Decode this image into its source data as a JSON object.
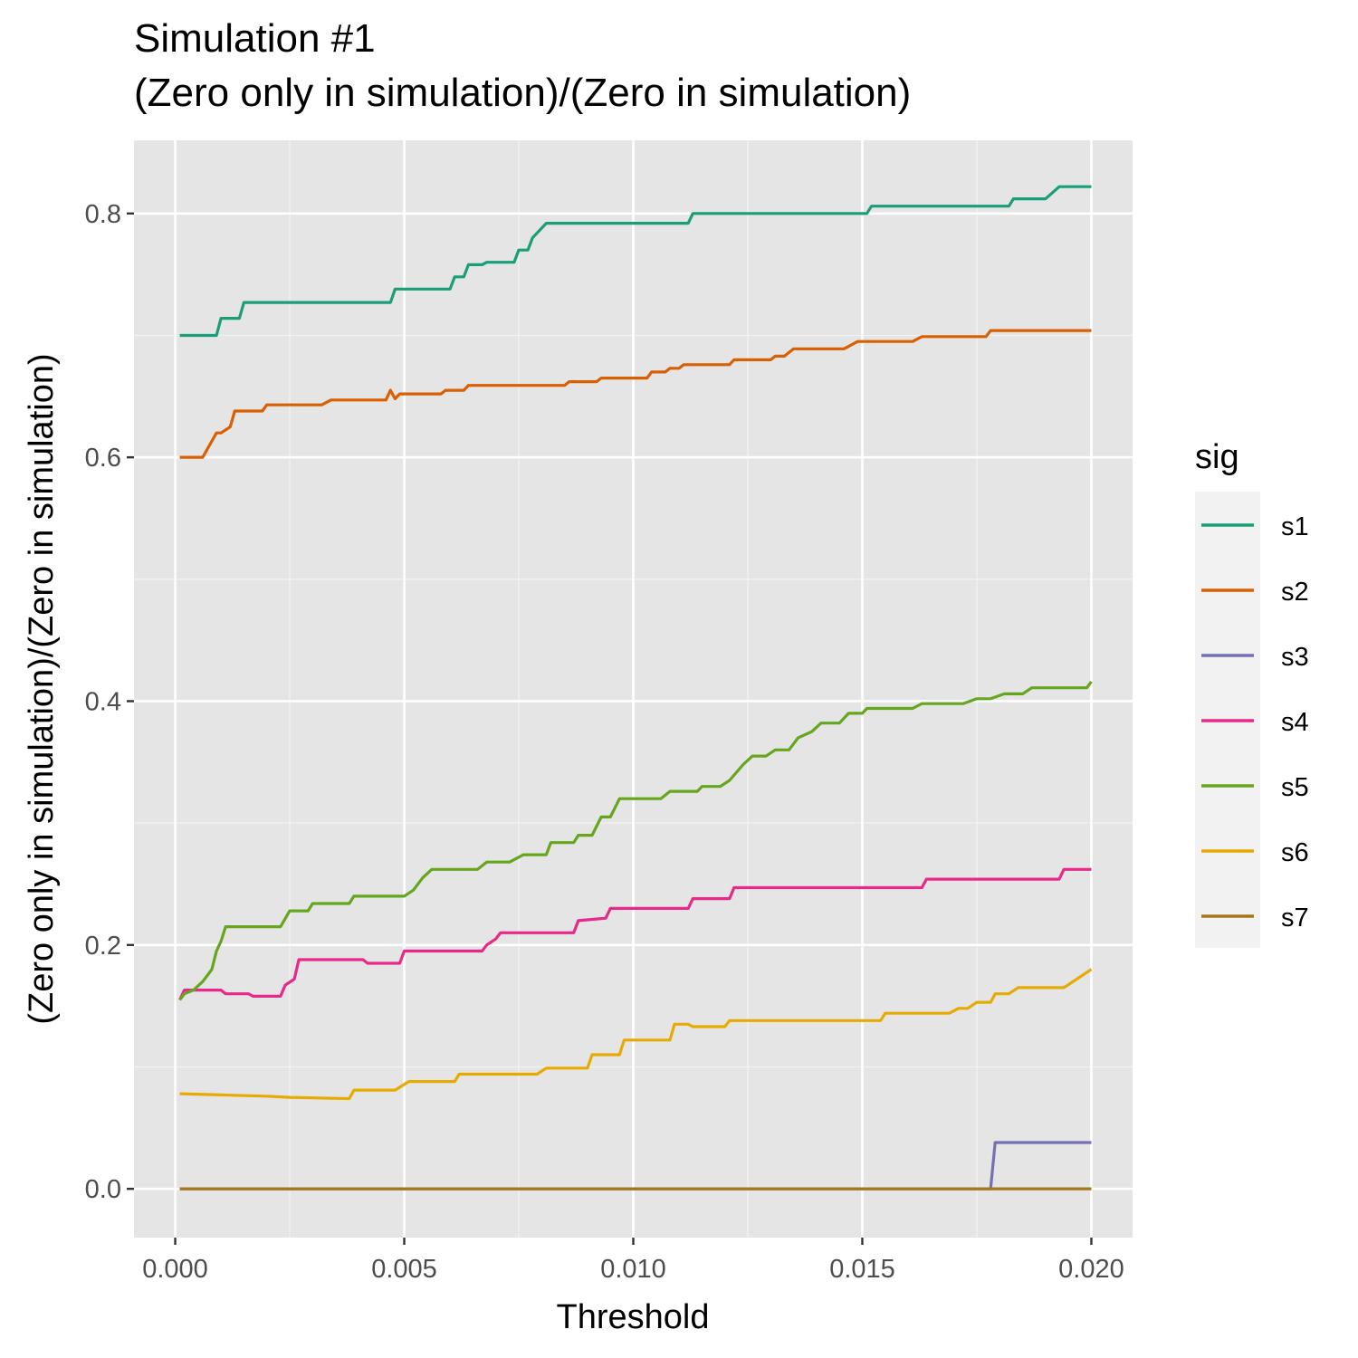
{
  "chart_data": {
    "type": "line",
    "title": "Simulation #1",
    "subtitle": "(Zero only in simulation)/(Zero in simulation)",
    "xlabel": "Threshold",
    "ylabel": "(Zero only in simulation)/(Zero in simulation)",
    "xlim": [
      -0.0009,
      0.0209
    ],
    "ylim": [
      -0.04,
      0.86
    ],
    "x_ticks": [
      0.0,
      0.005,
      0.01,
      0.015,
      0.02
    ],
    "x_tick_labels": [
      "0.000",
      "0.005",
      "0.010",
      "0.015",
      "0.020"
    ],
    "y_ticks": [
      0.0,
      0.2,
      0.4,
      0.6,
      0.8
    ],
    "y_tick_labels": [
      "0.0",
      "0.2",
      "0.4",
      "0.6",
      "0.8"
    ],
    "grid": true,
    "legend": {
      "title": "sig",
      "position": "right"
    },
    "series": [
      {
        "name": "s1",
        "color": "#1b9e77",
        "x": [
          0.0001,
          0.0009,
          0.001,
          0.0014,
          0.0015,
          0.0047,
          0.0048,
          0.006,
          0.0061,
          0.0063,
          0.0064,
          0.0067,
          0.0068,
          0.0074,
          0.0075,
          0.0077,
          0.0078,
          0.0081,
          0.0112,
          0.0113,
          0.0151,
          0.0152,
          0.0182,
          0.0183,
          0.019,
          0.0193,
          0.02
        ],
        "y": [
          0.7,
          0.7,
          0.714,
          0.714,
          0.727,
          0.727,
          0.738,
          0.738,
          0.748,
          0.748,
          0.758,
          0.758,
          0.76,
          0.76,
          0.77,
          0.77,
          0.78,
          0.792,
          0.792,
          0.8,
          0.8,
          0.806,
          0.806,
          0.812,
          0.812,
          0.822,
          0.822
        ]
      },
      {
        "name": "s2",
        "color": "#d95f02",
        "x": [
          0.0001,
          0.0006,
          0.0009,
          0.001,
          0.0012,
          0.0013,
          0.0019,
          0.002,
          0.0032,
          0.0034,
          0.0046,
          0.0047,
          0.0048,
          0.0049,
          0.0058,
          0.0059,
          0.0063,
          0.0064,
          0.0085,
          0.0086,
          0.0092,
          0.0093,
          0.0103,
          0.0104,
          0.0107,
          0.0108,
          0.011,
          0.0111,
          0.0121,
          0.0122,
          0.013,
          0.0131,
          0.0133,
          0.0135,
          0.0146,
          0.0149,
          0.0161,
          0.0163,
          0.0177,
          0.0178,
          0.02
        ],
        "y": [
          0.6,
          0.6,
          0.62,
          0.62,
          0.625,
          0.638,
          0.638,
          0.643,
          0.643,
          0.647,
          0.647,
          0.655,
          0.648,
          0.652,
          0.652,
          0.655,
          0.655,
          0.659,
          0.659,
          0.662,
          0.662,
          0.665,
          0.665,
          0.67,
          0.67,
          0.673,
          0.673,
          0.676,
          0.676,
          0.68,
          0.68,
          0.683,
          0.683,
          0.689,
          0.689,
          0.695,
          0.695,
          0.699,
          0.699,
          0.704,
          0.704
        ]
      },
      {
        "name": "s3",
        "color": "#7570b3",
        "x": [
          0.0001,
          0.0178,
          0.0179,
          0.02
        ],
        "y": [
          0.0,
          0.0,
          0.038,
          0.038
        ]
      },
      {
        "name": "s4",
        "color": "#e7298a",
        "x": [
          0.0001,
          0.0002,
          0.0005,
          0.001,
          0.0011,
          0.0016,
          0.0017,
          0.0023,
          0.0024,
          0.0026,
          0.0027,
          0.0041,
          0.0042,
          0.0049,
          0.005,
          0.0067,
          0.0068,
          0.007,
          0.0071,
          0.0087,
          0.0088,
          0.0094,
          0.0095,
          0.0112,
          0.0113,
          0.0121,
          0.0122,
          0.0163,
          0.0164,
          0.0193,
          0.0194,
          0.02
        ],
        "y": [
          0.155,
          0.163,
          0.163,
          0.163,
          0.16,
          0.16,
          0.158,
          0.158,
          0.167,
          0.172,
          0.188,
          0.188,
          0.185,
          0.185,
          0.195,
          0.195,
          0.2,
          0.205,
          0.21,
          0.21,
          0.22,
          0.222,
          0.23,
          0.23,
          0.238,
          0.238,
          0.247,
          0.247,
          0.254,
          0.254,
          0.262,
          0.262
        ]
      },
      {
        "name": "s5",
        "color": "#66a61e",
        "x": [
          0.0001,
          0.0002,
          0.0004,
          0.0006,
          0.0007,
          0.0008,
          0.0009,
          0.001,
          0.0011,
          0.0012,
          0.0023,
          0.0025,
          0.0029,
          0.003,
          0.0038,
          0.0039,
          0.005,
          0.0052,
          0.0054,
          0.0056,
          0.0066,
          0.0068,
          0.0073,
          0.0076,
          0.0081,
          0.0082,
          0.0087,
          0.0088,
          0.0091,
          0.0093,
          0.0095,
          0.0097,
          0.0098,
          0.0099,
          0.0106,
          0.0108,
          0.0114,
          0.0115,
          0.0119,
          0.0121,
          0.0124,
          0.0126,
          0.0129,
          0.0131,
          0.0134,
          0.0136,
          0.0139,
          0.0141,
          0.0145,
          0.0147,
          0.015,
          0.0151,
          0.0161,
          0.0163,
          0.0172,
          0.0175,
          0.0178,
          0.0181,
          0.0185,
          0.0187,
          0.0199,
          0.02
        ],
        "y": [
          0.155,
          0.16,
          0.163,
          0.17,
          0.175,
          0.18,
          0.195,
          0.203,
          0.215,
          0.215,
          0.215,
          0.228,
          0.228,
          0.234,
          0.234,
          0.24,
          0.24,
          0.245,
          0.255,
          0.262,
          0.262,
          0.268,
          0.268,
          0.274,
          0.274,
          0.284,
          0.284,
          0.29,
          0.29,
          0.305,
          0.305,
          0.32,
          0.32,
          0.32,
          0.32,
          0.326,
          0.326,
          0.33,
          0.33,
          0.335,
          0.348,
          0.355,
          0.355,
          0.36,
          0.36,
          0.37,
          0.375,
          0.382,
          0.382,
          0.39,
          0.39,
          0.394,
          0.394,
          0.398,
          0.398,
          0.402,
          0.402,
          0.406,
          0.406,
          0.411,
          0.411,
          0.416
        ]
      },
      {
        "name": "s6",
        "color": "#e6ab02",
        "x": [
          0.0001,
          0.001,
          0.002,
          0.0025,
          0.0038,
          0.0039,
          0.0048,
          0.0051,
          0.0061,
          0.0062,
          0.0068,
          0.0079,
          0.0081,
          0.009,
          0.0091,
          0.0097,
          0.0098,
          0.0108,
          0.0109,
          0.0112,
          0.0113,
          0.012,
          0.0121,
          0.0154,
          0.0155,
          0.0169,
          0.0171,
          0.0173,
          0.0175,
          0.0178,
          0.0179,
          0.0182,
          0.0184,
          0.0194,
          0.0198,
          0.02
        ],
        "y": [
          0.078,
          0.077,
          0.076,
          0.075,
          0.074,
          0.081,
          0.081,
          0.088,
          0.088,
          0.094,
          0.094,
          0.094,
          0.099,
          0.099,
          0.11,
          0.11,
          0.122,
          0.122,
          0.135,
          0.135,
          0.133,
          0.133,
          0.138,
          0.138,
          0.144,
          0.144,
          0.148,
          0.148,
          0.153,
          0.153,
          0.16,
          0.16,
          0.165,
          0.165,
          0.175,
          0.18
        ]
      },
      {
        "name": "s7",
        "color": "#a6761d",
        "x": [
          0.0001,
          0.02
        ],
        "y": [
          0.0,
          0.0
        ]
      }
    ]
  }
}
